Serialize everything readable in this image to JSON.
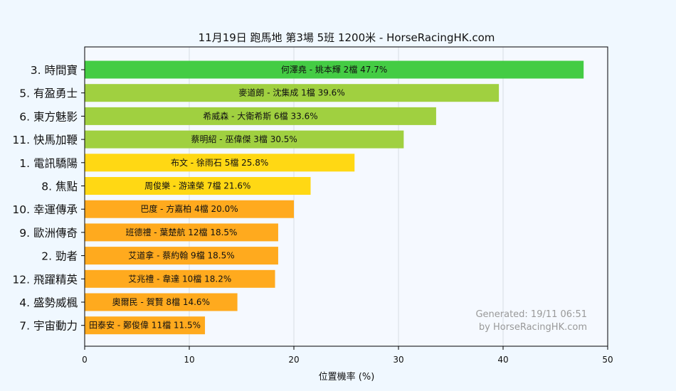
{
  "chart_data": {
    "type": "bar",
    "orientation": "horizontal",
    "title": "11月19日  跑馬地  第3場  5班  1200米 - HorseRacingHK.com",
    "xlabel": "位置機率 (%)",
    "ylabel": "",
    "xlim": [
      0,
      50
    ],
    "x_ticks": [
      "0",
      "10",
      "20",
      "30",
      "40",
      "50"
    ],
    "grid": "vertical",
    "categories": [
      "3. 時間寶",
      "5. 有盈勇士",
      "6. 東方魅影",
      "11. 快馬加鞭",
      "1. 電訊驕陽",
      "8. 焦點",
      "10. 幸運傳承",
      "9. 歐洲傳奇",
      "2. 勁者",
      "12. 飛躍精英",
      "4. 盛勢威楓",
      "7. 宇宙動力"
    ],
    "values": [
      47.7,
      39.6,
      33.6,
      30.5,
      25.8,
      21.6,
      20.0,
      18.5,
      18.5,
      18.2,
      14.6,
      11.5
    ],
    "bar_labels": [
      "何澤堯 - 姚本輝 2檔  47.7%",
      "麥道朗 - 沈集成 1檔  39.6%",
      "希威森 - 大衛希斯 6檔  33.6%",
      "蔡明紹 - 巫偉傑 3檔  30.5%",
      "布文 - 徐雨石 5檔  25.8%",
      "周俊樂 - 游達榮 7檔  21.6%",
      "巴度 - 方嘉柏 4檔  20.0%",
      "班德禮 - 葉楚航 12檔  18.5%",
      "艾道拿 - 蔡約翰 9檔  18.5%",
      "艾兆禮 - 韋達 10檔  18.2%",
      "奧爾民 - 賀賢 8檔  14.6%",
      "田泰安 - 鄭俊偉 11檔  11.5%"
    ],
    "colors": [
      "#44cc44",
      "#a0d040",
      "#a0d040",
      "#a0d040",
      "#ffd814",
      "#ffd814",
      "#ffaa1e",
      "#ffaa1e",
      "#ffaa1e",
      "#ffaa1e",
      "#ffaa1e",
      "#ffaa1e"
    ]
  },
  "watermark": {
    "line1": "Generated: 19/11 06:51",
    "line2": "by HorseRacingHK.com"
  }
}
